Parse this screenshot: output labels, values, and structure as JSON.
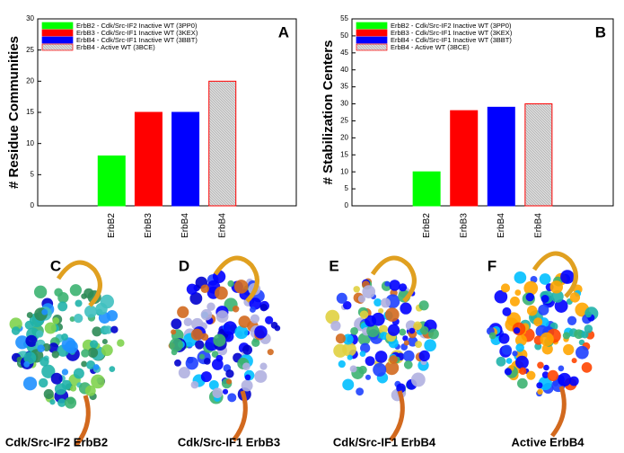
{
  "chart_data": [
    {
      "type": "bar",
      "panel": "A",
      "ylabel": "# Residue Communities",
      "categories": [
        "ErbB2",
        "ErbB3",
        "ErbB4",
        "ErbB4"
      ],
      "values": [
        8,
        15,
        15,
        20
      ],
      "colors": [
        "#00ff00",
        "#ff0000",
        "#0000ff",
        "#c8c8c8"
      ],
      "edge_colors": [
        "#00ff00",
        "#ff0000",
        "#0000ff",
        "#ff0000"
      ],
      "legend": [
        "ErbB2 - Cdk/Src-IF2 Inactive WT (3PP0)",
        "ErbB3 - Cdk/Src-IF1 Inactive WT (3KEX)",
        "ErbB4 - Cdk/Src-IF1 Inactive WT (3BBT)",
        "ErbB4 - Active WT (3BCE)"
      ],
      "ylim": [
        0,
        30
      ],
      "yticks": [
        0,
        5,
        10,
        15,
        20,
        25,
        30
      ]
    },
    {
      "type": "bar",
      "panel": "B",
      "ylabel": "# Stabilization Centers",
      "categories": [
        "ErbB2",
        "ErbB3",
        "ErbB4",
        "ErbB4"
      ],
      "values": [
        10,
        28,
        29,
        30
      ],
      "colors": [
        "#00ff00",
        "#ff0000",
        "#0000ff",
        "#c8c8c8"
      ],
      "edge_colors": [
        "#00ff00",
        "#ff0000",
        "#0000ff",
        "#ff0000"
      ],
      "legend": [
        "ErbB2 - Cdk/Src-IF2 Inactive WT (3PP0)",
        "ErbB3 - Cdk/Src-IF1 Inactive WT (3KEX)",
        "ErbB4 - Cdk/Src-IF1 Inactive WT (3BBT)",
        "ErbB4 - Active WT (3BCE)"
      ],
      "ylim": [
        0,
        55
      ],
      "yticks": [
        0,
        5,
        10,
        15,
        20,
        25,
        30,
        35,
        40,
        45,
        50,
        55
      ]
    }
  ],
  "structures": [
    {
      "letter": "C",
      "caption": "Cdk/Src-IF2 ErbB2"
    },
    {
      "letter": "D",
      "caption": "Cdk/Src-IF1 ErbB3"
    },
    {
      "letter": "E",
      "caption": "Cdk/Src-IF1 ErbB4"
    },
    {
      "letter": "F",
      "caption": "Active ErbB4"
    }
  ]
}
